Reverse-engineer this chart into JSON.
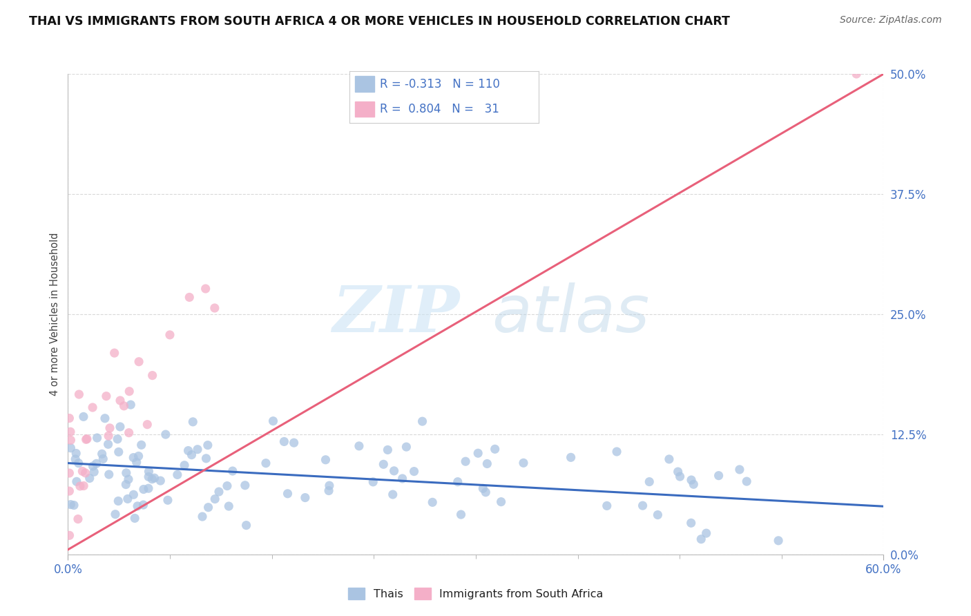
{
  "title": "THAI VS IMMIGRANTS FROM SOUTH AFRICA 4 OR MORE VEHICLES IN HOUSEHOLD CORRELATION CHART",
  "source": "Source: ZipAtlas.com",
  "ylabel": "4 or more Vehicles in Household",
  "color_thai": "#aac4e2",
  "color_sa": "#f4afc8",
  "color_thai_line": "#3a6bbf",
  "color_sa_line": "#e8607a",
  "color_tick": "#4472c4",
  "watermark_zip": "ZIP",
  "watermark_atlas": "atlas",
  "background_color": "#ffffff",
  "grid_color": "#d0d0d0",
  "xlim": [
    0.0,
    60.0
  ],
  "ylim": [
    0.0,
    50.0
  ],
  "title_fontsize": 12.5,
  "source_fontsize": 10,
  "tick_fontsize": 12,
  "legend_label1": "R = -0.313",
  "legend_n1": "N = 110",
  "legend_label2": "R =  0.804",
  "legend_n2": "N =  31",
  "thai_line_x0": 0.0,
  "thai_line_x1": 60.0,
  "thai_line_y0": 9.5,
  "thai_line_y1": 5.0,
  "sa_line_x0": 0.0,
  "sa_line_x1": 60.0,
  "sa_line_y0": 0.5,
  "sa_line_y1": 50.0
}
